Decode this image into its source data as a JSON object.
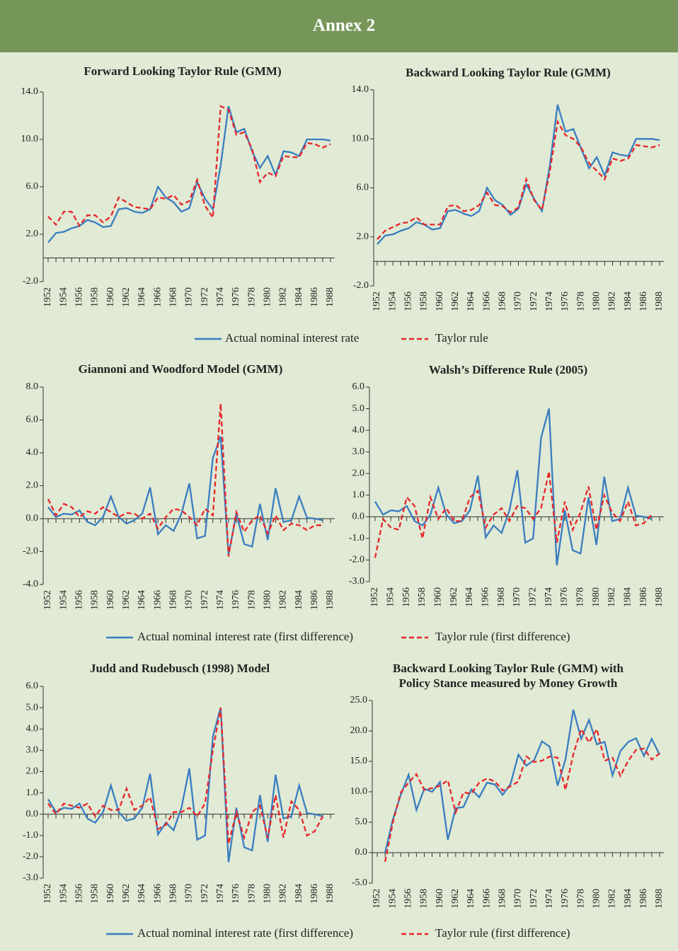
{
  "header": {
    "title": "Annex 2"
  },
  "chart_data": [
    {
      "type": "line",
      "title": [
        "Forward Looking Taylor Rule (GMM)"
      ],
      "categories": [
        "1952",
        null,
        "1954",
        null,
        "1956",
        null,
        "1958",
        null,
        "1960",
        null,
        "1962",
        null,
        "1964",
        null,
        "1966",
        null,
        "1968",
        null,
        "1970",
        null,
        "1972",
        null,
        "1974",
        null,
        "1976",
        null,
        "1978",
        null,
        "1980",
        null,
        "1982",
        null,
        "1984",
        null,
        "1986",
        null,
        "1988"
      ],
      "ylim": [
        -2,
        14
      ],
      "yticks": [
        {
          "value": -2,
          "label": "-2.0"
        },
        {
          "value": 2,
          "label": "2.0"
        },
        {
          "value": 6,
          "label": "6.0"
        },
        {
          "value": 10,
          "label": "10.0"
        },
        {
          "value": 14,
          "label": "14.0"
        }
      ],
      "series": [
        {
          "name": "Actual nominal interest rate",
          "color": "#3a7dc0",
          "style": "solid",
          "values": [
            1.3,
            2.1,
            2.2,
            2.5,
            2.7,
            3.2,
            3.0,
            2.6,
            2.7,
            4.1,
            4.2,
            3.9,
            3.8,
            4.1,
            6.0,
            5.1,
            4.7,
            3.9,
            4.2,
            6.4,
            5.0,
            4.1,
            7.8,
            12.8,
            10.6,
            10.9,
            9.0,
            7.6,
            8.6,
            7.0,
            9.0,
            8.9,
            8.6,
            10.0,
            10.0,
            10.0,
            9.9
          ]
        },
        {
          "name": "Taylor rule",
          "color": "#e8262a",
          "style": "dashed",
          "values": [
            3.5,
            2.8,
            3.9,
            3.9,
            2.7,
            3.6,
            3.6,
            3.0,
            3.5,
            5.1,
            4.7,
            4.3,
            4.2,
            4.1,
            5.1,
            5.0,
            5.3,
            4.5,
            4.8,
            6.6,
            4.4,
            3.4,
            12.8,
            12.5,
            10.4,
            10.6,
            9.2,
            6.4,
            7.2,
            6.9,
            8.6,
            8.5,
            8.5,
            9.7,
            9.6,
            9.3,
            9.6
          ]
        }
      ]
    },
    {
      "type": "line",
      "title": [
        "Backward Looking Taylor Rule (GMM)"
      ],
      "categories": [
        "1952",
        null,
        "1954",
        null,
        "1956",
        null,
        "1958",
        null,
        "1960",
        null,
        "1962",
        null,
        "1964",
        null,
        "1966",
        null,
        "1968",
        null,
        "1970",
        null,
        "1972",
        null,
        "1974",
        null,
        "1976",
        null,
        "1978",
        null,
        "1980",
        null,
        "1982",
        null,
        "1984",
        null,
        "1986",
        null,
        "1988"
      ],
      "ylim": [
        -2,
        14
      ],
      "yticks": [
        {
          "value": -2,
          "label": "-2.0"
        },
        {
          "value": 2,
          "label": "2.0"
        },
        {
          "value": 6,
          "label": "6.0"
        },
        {
          "value": 10,
          "label": "10.0"
        },
        {
          "value": 14,
          "label": "14.0"
        }
      ],
      "series": [
        {
          "color": "#3a7dc0",
          "style": "solid",
          "values": [
            1.4,
            2.1,
            2.2,
            2.5,
            2.7,
            3.2,
            3.0,
            2.6,
            2.7,
            4.1,
            4.2,
            3.9,
            3.7,
            4.1,
            6.0,
            5.0,
            4.6,
            3.8,
            4.3,
            6.3,
            5.1,
            4.1,
            7.8,
            12.8,
            10.6,
            10.8,
            9.2,
            7.6,
            8.5,
            7.0,
            8.9,
            8.7,
            8.6,
            10.0,
            10.0,
            10.0,
            9.9
          ]
        },
        {
          "color": "#e8262a",
          "style": "dashed",
          "values": [
            1.8,
            2.5,
            2.8,
            3.1,
            3.2,
            3.6,
            3.0,
            3.0,
            3.0,
            4.5,
            4.6,
            4.1,
            4.2,
            4.6,
            5.6,
            4.6,
            4.5,
            4.0,
            4.4,
            6.7,
            5.0,
            4.2,
            7.3,
            11.4,
            10.3,
            10.0,
            9.3,
            8.0,
            7.4,
            6.7,
            8.4,
            8.2,
            8.4,
            9.5,
            9.4,
            9.3,
            9.5
          ]
        }
      ]
    },
    {
      "type": "line",
      "title": [
        "Giannoni and Woodford Model (GMM)"
      ],
      "categories": [
        "1952",
        null,
        "1954",
        null,
        "1956",
        null,
        "1958",
        null,
        "1960",
        null,
        "1962",
        null,
        "1964",
        null,
        "1966",
        null,
        "1968",
        null,
        "1970",
        null,
        "1972",
        null,
        "1974",
        null,
        "1976",
        null,
        "1978",
        null,
        "1980",
        null,
        "1982",
        null,
        "1984",
        null,
        "1986",
        null,
        "1988"
      ],
      "ylim": [
        -4,
        8
      ],
      "yticks": [
        {
          "value": -4,
          "label": "-4.0"
        },
        {
          "value": -2,
          "label": "-2.0"
        },
        {
          "value": 0,
          "label": "0.0"
        },
        {
          "value": 2,
          "label": "2.0"
        },
        {
          "value": 4,
          "label": "4.0"
        },
        {
          "value": 6,
          "label": "6.0"
        },
        {
          "value": 8,
          "label": "8.0"
        }
      ],
      "series": [
        {
          "name": "Actual nominal interest rate (first difference)",
          "color": "#3a7dc0",
          "style": "solid",
          "values": [
            0.7,
            0.1,
            0.3,
            0.25,
            0.5,
            -0.2,
            -0.4,
            0.1,
            1.35,
            0.1,
            -0.3,
            -0.1,
            0.3,
            1.9,
            -0.95,
            -0.4,
            -0.75,
            0.3,
            2.15,
            -1.2,
            -1.05,
            3.7,
            5.0,
            -2.2,
            0.3,
            -1.55,
            -1.7,
            0.9,
            -1.3,
            1.85,
            -0.2,
            -0.1,
            1.35,
            0.05,
            0.0,
            -0.1,
            null
          ]
        },
        {
          "name": "Taylor rule (first difference)",
          "color": "#e8262a",
          "style": "dashed",
          "values": [
            1.2,
            0.2,
            0.9,
            0.7,
            0.1,
            0.45,
            0.3,
            0.7,
            0.4,
            0.1,
            0.35,
            0.3,
            0.0,
            0.3,
            -0.6,
            0.1,
            0.6,
            0.5,
            0.1,
            -0.4,
            0.6,
            0.2,
            7.0,
            -2.3,
            0.4,
            -0.8,
            -0.1,
            0.2,
            -0.9,
            0.2,
            -0.7,
            -0.3,
            -0.4,
            -0.7,
            -0.4,
            -0.4,
            null
          ]
        }
      ]
    },
    {
      "type": "line",
      "title": [
        "Walsh’s Difference Rule (2005)"
      ],
      "categories": [
        "1952",
        null,
        "1954",
        null,
        "1956",
        null,
        "1958",
        null,
        "1960",
        null,
        "1962",
        null,
        "1964",
        null,
        "1966",
        null,
        "1968",
        null,
        "1970",
        null,
        "1972",
        null,
        "1974",
        null,
        "1976",
        null,
        "1978",
        null,
        "1980",
        null,
        "1982",
        null,
        "1984",
        null,
        "1986",
        null,
        "1988"
      ],
      "ylim": [
        -3,
        6
      ],
      "yticks": [
        {
          "value": -3,
          "label": "-3.0"
        },
        {
          "value": -2,
          "label": "-2.0"
        },
        {
          "value": -1,
          "label": "-1.0"
        },
        {
          "value": 0,
          "label": "0.0"
        },
        {
          "value": 1,
          "label": "1.0"
        },
        {
          "value": 2,
          "label": "2.0"
        },
        {
          "value": 3,
          "label": "3.0"
        },
        {
          "value": 4,
          "label": "4.0"
        },
        {
          "value": 5,
          "label": "5.0"
        },
        {
          "value": 6,
          "label": "6.0"
        }
      ],
      "series": [
        {
          "color": "#3a7dc0",
          "style": "solid",
          "values": [
            0.7,
            0.1,
            0.3,
            0.25,
            0.5,
            -0.2,
            -0.4,
            0.1,
            1.35,
            0.1,
            -0.3,
            -0.2,
            0.3,
            1.9,
            -0.95,
            -0.4,
            -0.75,
            0.3,
            2.15,
            -1.2,
            -1.0,
            3.65,
            5.0,
            -2.25,
            0.3,
            -1.55,
            -1.7,
            0.9,
            -1.3,
            1.85,
            -0.2,
            -0.1,
            1.35,
            0.05,
            0.0,
            -0.1,
            null
          ]
        },
        {
          "color": "#e8262a",
          "style": "dashed",
          "values": [
            -1.9,
            -0.1,
            -0.5,
            -0.6,
            0.9,
            0.5,
            -1.0,
            0.9,
            -0.1,
            0.4,
            -0.2,
            -0.2,
            0.9,
            1.2,
            -0.5,
            0.1,
            0.4,
            -0.2,
            0.5,
            0.4,
            -0.1,
            0.4,
            2.1,
            -1.2,
            0.7,
            -0.6,
            0.2,
            1.4,
            -0.6,
            1.0,
            0.2,
            -0.2,
            0.7,
            -0.4,
            -0.3,
            0.1,
            null
          ]
        }
      ]
    },
    {
      "type": "line",
      "title": [
        "Judd and Rudebusch (1998) Model"
      ],
      "categories": [
        "1952",
        null,
        "1954",
        null,
        "1956",
        null,
        "1958",
        null,
        "1960",
        null,
        "1962",
        null,
        "1964",
        null,
        "1966",
        null,
        "1968",
        null,
        "1970",
        null,
        "1972",
        null,
        "1974",
        null,
        "1976",
        null,
        "1978",
        null,
        "1980",
        null,
        "1982",
        null,
        "1984",
        null,
        "1986",
        null,
        "1988"
      ],
      "ylim": [
        -3,
        6
      ],
      "yticks": [
        {
          "value": -3,
          "label": "-3.0"
        },
        {
          "value": -2,
          "label": "-2.0"
        },
        {
          "value": -1,
          "label": "-1.0"
        },
        {
          "value": 0,
          "label": "0.0"
        },
        {
          "value": 1,
          "label": "1.0"
        },
        {
          "value": 2,
          "label": "2.0"
        },
        {
          "value": 3,
          "label": "3.0"
        },
        {
          "value": 4,
          "label": "4.0"
        },
        {
          "value": 5,
          "label": "5.0"
        },
        {
          "value": 6,
          "label": "6.0"
        }
      ],
      "series": [
        {
          "name": "Actual nominal interest rate (first difference)",
          "color": "#3a7dc0",
          "style": "solid",
          "values": [
            0.7,
            0.1,
            0.3,
            0.25,
            0.5,
            -0.2,
            -0.4,
            0.1,
            1.35,
            0.1,
            -0.3,
            -0.2,
            0.3,
            1.9,
            -0.95,
            -0.4,
            -0.75,
            0.3,
            2.15,
            -1.2,
            -1.0,
            3.65,
            5.0,
            -2.25,
            0.3,
            -1.55,
            -1.7,
            0.9,
            -1.3,
            1.85,
            -0.2,
            -0.1,
            1.35,
            0.05,
            0.0,
            -0.1,
            null
          ]
        },
        {
          "name": "Taylor rule (first difference)",
          "color": "#e8262a",
          "style": "dashed",
          "values": [
            0.5,
            0.0,
            0.5,
            0.4,
            0.3,
            0.5,
            -0.1,
            0.4,
            0.2,
            0.2,
            1.2,
            0.2,
            0.4,
            0.8,
            -0.7,
            -0.5,
            0.1,
            0.1,
            0.3,
            -0.1,
            0.5,
            3.0,
            5.0,
            -1.4,
            0.1,
            -1.1,
            0.1,
            0.4,
            -1.1,
            0.9,
            -1.1,
            0.6,
            0.2,
            -1.0,
            -0.8,
            -0.1,
            null
          ]
        }
      ]
    },
    {
      "type": "line",
      "title": [
        "Backward Looking Taylor Rule (GMM) with",
        "Policy Stance measured by Money Growth"
      ],
      "categories": [
        "1952",
        null,
        "1954",
        null,
        "1956",
        null,
        "1958",
        null,
        "1960",
        null,
        "1962",
        null,
        "1964",
        null,
        "1966",
        null,
        "1968",
        null,
        "1970",
        null,
        "1972",
        null,
        "1974",
        null,
        "1976",
        null,
        "1978",
        null,
        "1980",
        null,
        "1982",
        null,
        "1984",
        null,
        "1986",
        null,
        "1988"
      ],
      "ylim": [
        -5,
        25
      ],
      "yticks": [
        {
          "value": -5,
          "label": "-5.0"
        },
        {
          "value": 0,
          "label": "0.0"
        },
        {
          "value": 5,
          "label": "5.0"
        },
        {
          "value": 10,
          "label": "10.0"
        },
        {
          "value": 15,
          "label": "15.0"
        },
        {
          "value": 20,
          "label": "20.0"
        },
        {
          "value": 25,
          "label": "25.0"
        }
      ],
      "series": [
        {
          "color": "#3a7dc0",
          "style": "solid",
          "values": [
            null,
            0.0,
            5.5,
            9.5,
            12.8,
            7.0,
            10.5,
            10.0,
            11.6,
            2.1,
            7.3,
            7.5,
            10.4,
            9.1,
            11.5,
            11.2,
            9.5,
            11.3,
            16.1,
            14.3,
            15.2,
            18.3,
            17.4,
            11.0,
            15.3,
            23.5,
            18.7,
            21.8,
            17.8,
            18.2,
            12.7,
            16.7,
            18.2,
            18.8,
            15.9,
            18.7,
            16.1
          ]
        },
        {
          "color": "#e8262a",
          "style": "dashed",
          "values": [
            null,
            -1.5,
            5.0,
            9.9,
            11.5,
            12.9,
            10.3,
            10.6,
            11.0,
            11.9,
            6.6,
            9.9,
            9.7,
            11.5,
            12.2,
            11.7,
            10.2,
            10.9,
            11.7,
            15.8,
            14.9,
            15.1,
            15.8,
            15.6,
            10.3,
            16.2,
            20.3,
            18.1,
            20.3,
            15.1,
            15.6,
            12.6,
            15.1,
            16.9,
            17.1,
            15.3,
            16.3
          ]
        }
      ]
    }
  ]
}
